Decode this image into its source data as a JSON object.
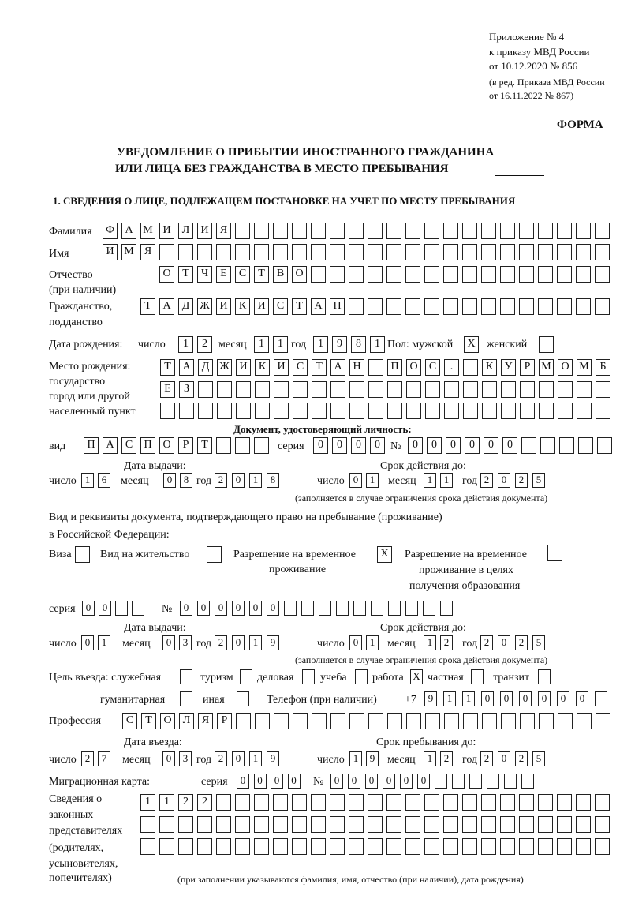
{
  "header": {
    "appendix_line1": "Приложение № 4",
    "appendix_line2": "к приказу МВД России",
    "appendix_line3": "от 10.12.2020 № 856",
    "edition_line1": "(в ред. Приказа МВД России",
    "edition_line2": "от 16.11.2022 № 867)",
    "form_label": "ФОРМА",
    "title_line1": "УВЕДОМЛЕНИЕ О ПРИБЫТИИ ИНОСТРАННОГО ГРАЖДАНИНА",
    "title_line2": "ИЛИ ЛИЦА БЕЗ ГРАЖДАНСТВА В МЕСТО ПРЕБЫВАНИЯ",
    "section1_title": "1. СВЕДЕНИЯ О ЛИЦЕ, ПОДЛЕЖАЩЕМ ПОСТАНОВКЕ НА УЧЕТ ПО МЕСТУ ПРЕБЫВАНИЯ"
  },
  "person": {
    "surname": {
      "label": "Фамилия",
      "value": "ФАМИЛИЯ"
    },
    "name": {
      "label": "Имя",
      "value": "ИМЯ"
    },
    "patronymic": {
      "label1": "Отчество",
      "label2": "(при наличии)",
      "value": "ОТЧЕСТВО"
    },
    "citizenship": {
      "label1": "Гражданство,",
      "label2": "подданство",
      "value": "ТАДЖИКИСТАН"
    },
    "birth_date": {
      "label": "Дата рождения:",
      "day_label": "число",
      "month_label": "месяц",
      "year_label": "год",
      "day": "12",
      "month": "11",
      "year": "1981"
    },
    "sex": {
      "label": "Пол: мужской",
      "male": "Х",
      "female_label": "женский",
      "female": ""
    },
    "birth_place": {
      "label1": "Место рождения:",
      "label2": "государство",
      "label3": "город или другой",
      "label4": "населенный пункт",
      "line1": "ТАДЖИКИСТАН ПОС. КУРМОМБ",
      "line2": "ЕЗ",
      "line3": ""
    }
  },
  "identity_doc": {
    "heading": "Документ, удостоверяющий личность:",
    "type_label": "вид",
    "type": "ПАСПОРТ",
    "series_label": "серия",
    "series": "0000",
    "number_label": "№",
    "number": "000000",
    "issue_label": "Дата выдачи:",
    "valid_label": "Срок действия до:",
    "day_label": "число",
    "month_label": "месяц",
    "year_label": "год",
    "issue_day": "16",
    "issue_month": "08",
    "issue_year": "2018",
    "valid_day": "01",
    "valid_month": "11",
    "valid_year": "2025",
    "valid_note": "(заполняется в случае ограничения срока действия документа)"
  },
  "stay_doc": {
    "heading1": "Вид и реквизиты документа, подтверждающего право на пребывание (проживание)",
    "heading2": "в Российской Федерации:",
    "visa_label": "Виза",
    "visa": "",
    "residence_label": "Вид на жительство",
    "residence": "",
    "temp_label1": "Разрешение на временное",
    "temp_label2": "проживание",
    "temp": "Х",
    "edu_label1": "Разрешение на временное",
    "edu_label2": "проживание в целях",
    "edu_label3": "получения образования",
    "edu": "",
    "series_label": "серия",
    "series": "00",
    "number_label": "№",
    "number": "000000",
    "issue_label": "Дата выдачи:",
    "valid_label": "Срок действия до:",
    "day_label": "число",
    "month_label": "месяц",
    "year_label": "год",
    "issue_day": "01",
    "issue_month": "03",
    "issue_year": "2019",
    "valid_day": "01",
    "valid_month": "12",
    "valid_year": "2025",
    "valid_note": "(заполняется в случае ограничения срока действия документа)"
  },
  "purpose": {
    "label": "Цель въезда: служебная",
    "official": "",
    "tourism_label": "туризм",
    "tourism": "",
    "business_label": "деловая",
    "business": "",
    "study_label": "учеба",
    "study": "",
    "work_label": "работа",
    "work": "Х",
    "private_label": "частная",
    "private": "",
    "transit_label": "транзит",
    "transit": "",
    "humanitarian_label": "гуманитарная",
    "humanitarian": "",
    "other_label": "иная",
    "other": ""
  },
  "phone": {
    "label": "Телефон (при наличии)",
    "prefix": "+7",
    "value": "911000000"
  },
  "profession": {
    "label": "Профессия",
    "value": "СТОЛЯР"
  },
  "entry": {
    "entry_label": "Дата въезда:",
    "stay_label": "Срок пребывания до:",
    "day_label": "число",
    "month_label": "месяц",
    "year_label": "год",
    "entry_day": "27",
    "entry_month": "03",
    "entry_year": "2019",
    "stay_day": "19",
    "stay_month": "12",
    "stay_year": "2025"
  },
  "migration_card": {
    "label": "Миграционная карта:",
    "series_label": "серия",
    "series": "0000",
    "number_label": "№",
    "number": "000000"
  },
  "representatives": {
    "label1": "Сведения о",
    "label2": "законных",
    "label3": "представителях",
    "label4": "(родителях,",
    "label5": "усыновителях,",
    "label6": "попечителях)",
    "line1": "1122",
    "line2": "",
    "line3": "",
    "note": "(при заполнении указываются фамилия, имя, отчество (при наличии), дата рождения)"
  }
}
